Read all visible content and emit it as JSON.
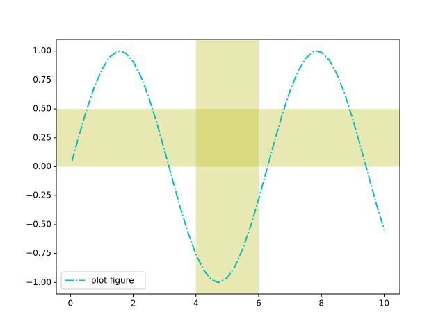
{
  "chart_data": {
    "type": "line",
    "x": [
      0.05,
      0.25,
      0.5,
      0.75,
      1.0,
      1.25,
      1.5,
      1.57,
      1.75,
      2.0,
      2.25,
      2.5,
      2.75,
      3.0,
      3.25,
      3.5,
      3.75,
      4.0,
      4.25,
      4.5,
      4.71,
      4.75,
      5.0,
      5.25,
      5.5,
      5.75,
      6.0,
      6.25,
      6.5,
      6.75,
      7.0,
      7.25,
      7.5,
      7.75,
      7.85,
      8.0,
      8.25,
      8.5,
      8.75,
      9.0,
      9.25,
      9.5,
      9.75,
      10.0
    ],
    "series": [
      {
        "name": "plot figure",
        "color": "#00bfbf",
        "values": [
          0.05,
          0.247,
          0.479,
          0.682,
          0.841,
          0.949,
          0.997,
          1.0,
          0.984,
          0.909,
          0.778,
          0.598,
          0.382,
          0.141,
          -0.108,
          -0.351,
          -0.572,
          -0.757,
          -0.895,
          -0.978,
          -1.0,
          -0.999,
          -0.959,
          -0.859,
          -0.706,
          -0.508,
          -0.279,
          -0.033,
          0.215,
          0.45,
          0.657,
          0.823,
          0.938,
          0.995,
          1.0,
          0.989,
          0.923,
          0.798,
          0.624,
          0.412,
          0.174,
          -0.075,
          -0.319,
          -0.544
        ]
      }
    ],
    "hspan": [
      0,
      0.5
    ],
    "vspan": [
      4,
      6
    ],
    "span_color": "#bcbd22",
    "xlim": [
      -0.45,
      10.5
    ],
    "ylim": [
      -1.1,
      1.1
    ],
    "xticks": [
      0,
      2,
      4,
      6,
      8,
      10
    ],
    "yticks": [
      {
        "value": -1,
        "label": "−1.00"
      },
      {
        "value": -0.75,
        "label": "−0.75"
      },
      {
        "value": -0.5,
        "label": "−0.50"
      },
      {
        "value": -0.25,
        "label": "−0.25"
      },
      {
        "value": 0,
        "label": "0.00"
      },
      {
        "value": 0.25,
        "label": "0.25"
      },
      {
        "value": 0.5,
        "label": "0.50"
      },
      {
        "value": 0.75,
        "label": "0.75"
      },
      {
        "value": 1,
        "label": "1.00"
      }
    ],
    "legend": "lower left"
  }
}
